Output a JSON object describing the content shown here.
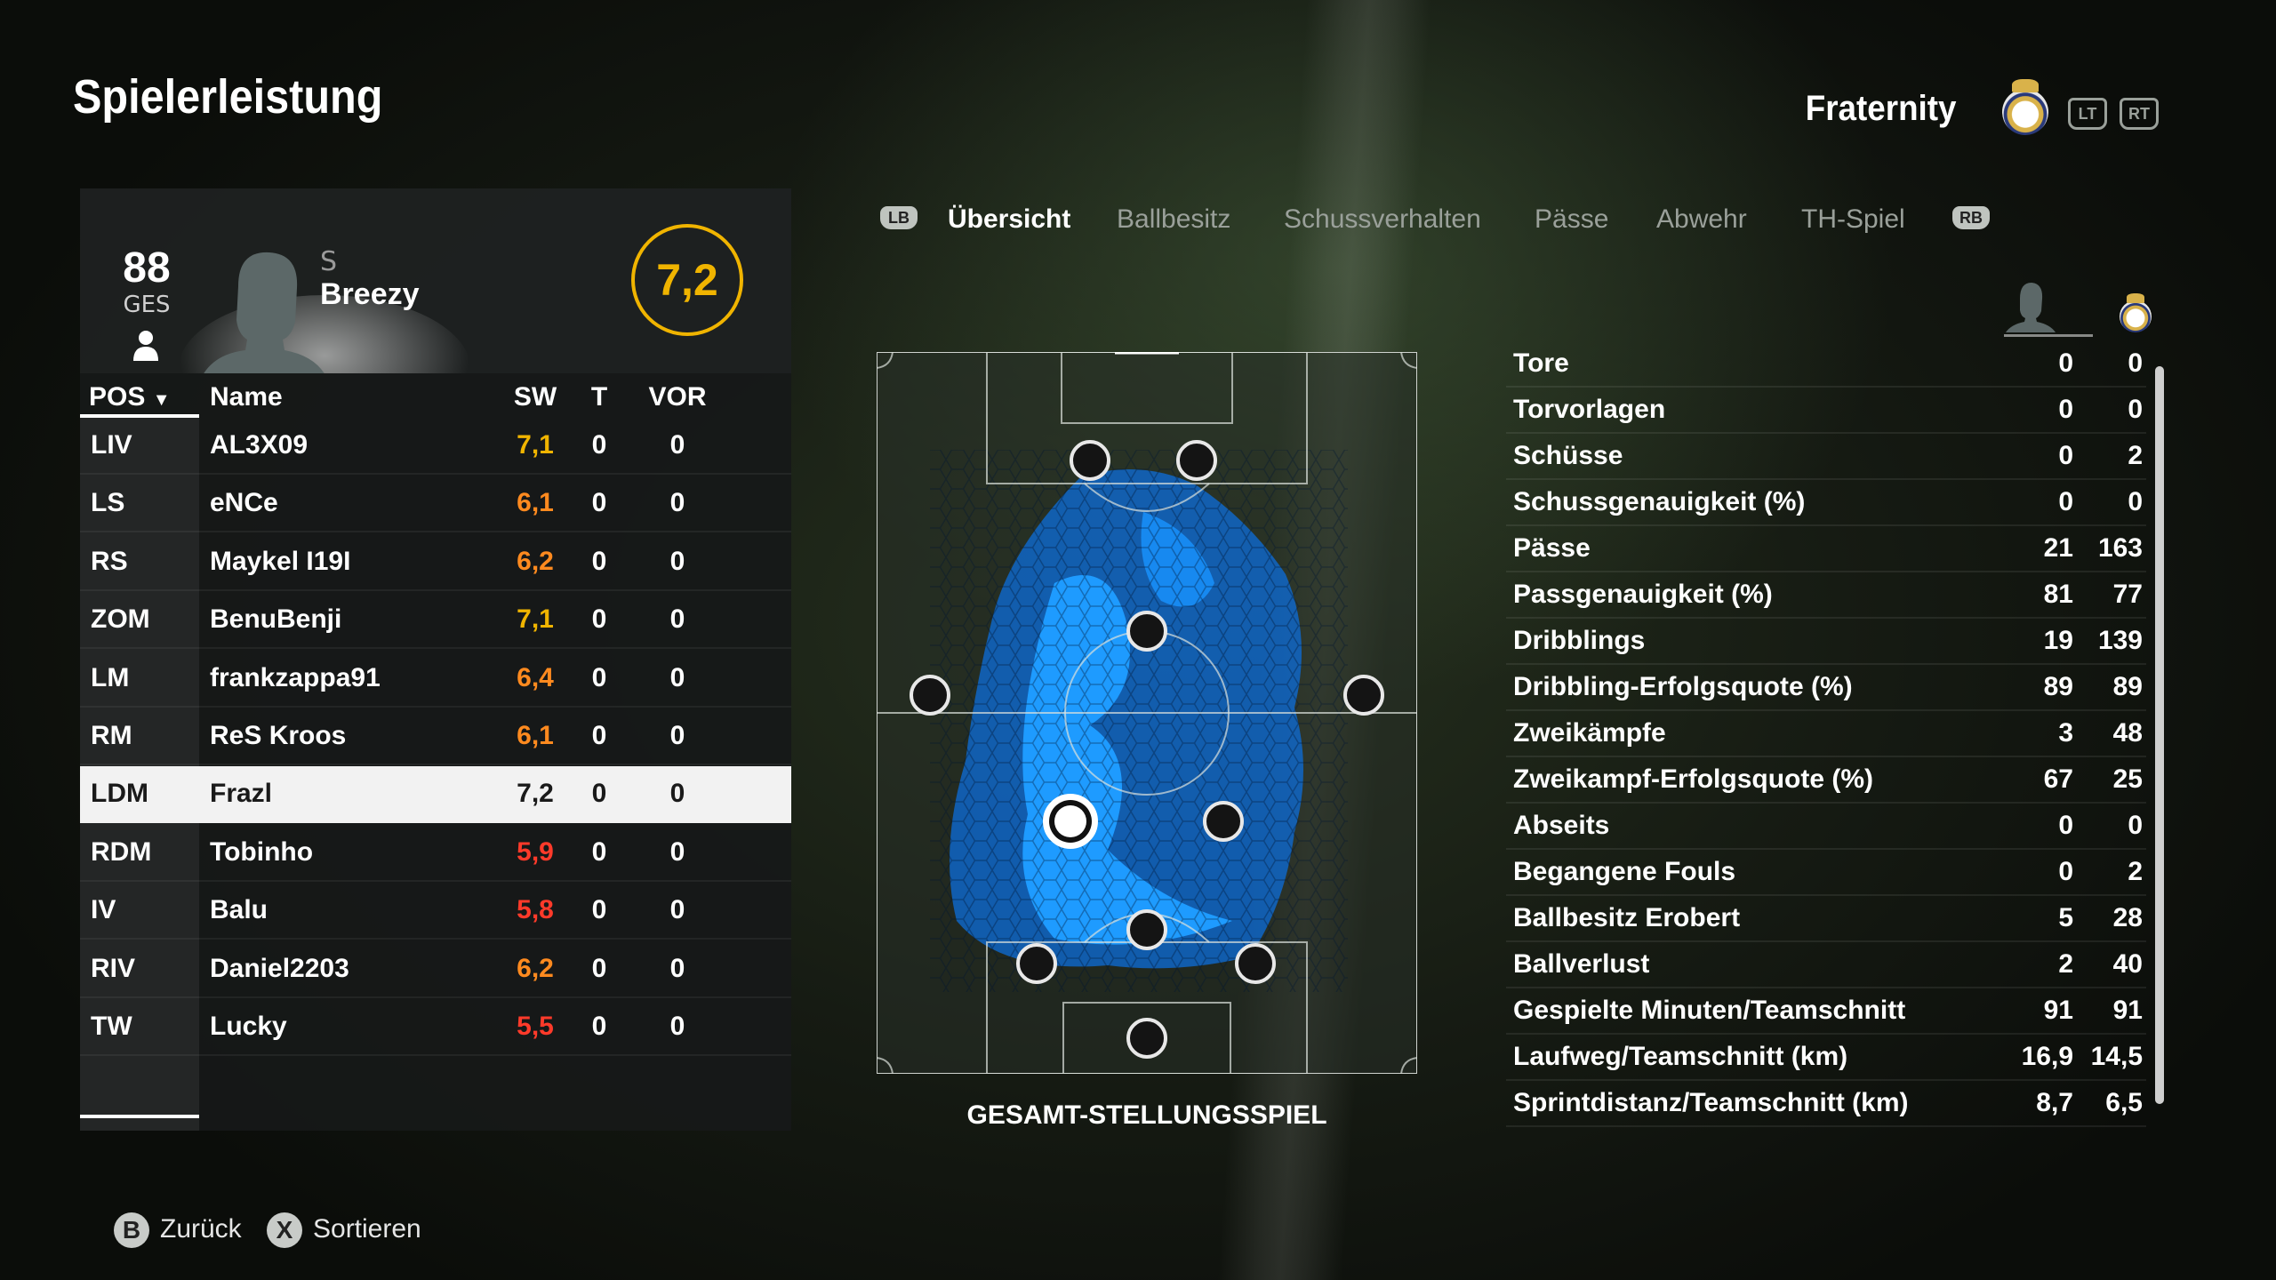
{
  "header": {
    "title": "Spielerleistung",
    "team": "Fraternity",
    "lt": "LT",
    "rt": "RT"
  },
  "player_card": {
    "overall": "88",
    "overall_label": "GES",
    "position": "S",
    "name": "Breezy",
    "rating": "7,2"
  },
  "table": {
    "headers": {
      "pos": "POS",
      "name": "Name",
      "sw": "SW",
      "t": "T",
      "vor": "VOR"
    },
    "rows": [
      {
        "pos": "LIV",
        "name": "AL3X09",
        "sw": "7,1",
        "t": "0",
        "vor": "0",
        "color": "#f0b400"
      },
      {
        "pos": "LS",
        "name": "eNCe",
        "sw": "6,1",
        "t": "0",
        "vor": "0",
        "color": "#ff8a1f"
      },
      {
        "pos": "RS",
        "name": "Maykel I19I",
        "sw": "6,2",
        "t": "0",
        "vor": "0",
        "color": "#ff8a1f"
      },
      {
        "pos": "ZOM",
        "name": "BenuBenji",
        "sw": "7,1",
        "t": "0",
        "vor": "0",
        "color": "#f0b400"
      },
      {
        "pos": "LM",
        "name": "frankzappa91",
        "sw": "6,4",
        "t": "0",
        "vor": "0",
        "color": "#ff8a1f"
      },
      {
        "pos": "RM",
        "name": "ReS Kroos",
        "sw": "6,1",
        "t": "0",
        "vor": "0",
        "color": "#ff8a1f"
      },
      {
        "pos": "LDM",
        "name": "Frazl",
        "sw": "7,2",
        "t": "0",
        "vor": "0",
        "color": "#1a1a1a",
        "selected": true
      },
      {
        "pos": "RDM",
        "name": "Tobinho",
        "sw": "5,9",
        "t": "0",
        "vor": "0",
        "color": "#ff3a2a"
      },
      {
        "pos": "IV",
        "name": "Balu",
        "sw": "5,8",
        "t": "0",
        "vor": "0",
        "color": "#ff3a2a"
      },
      {
        "pos": "RIV",
        "name": "Daniel2203",
        "sw": "6,2",
        "t": "0",
        "vor": "0",
        "color": "#ff8a1f"
      },
      {
        "pos": "TW",
        "name": "Lucky",
        "sw": "5,5",
        "t": "0",
        "vor": "0",
        "color": "#ff3a2a"
      }
    ]
  },
  "tabs": {
    "lb": "LB",
    "rb": "RB",
    "items": [
      "Übersicht",
      "Ballbesitz",
      "Schussverhalten",
      "Pässe",
      "Abwehr",
      "TH-Spiel"
    ],
    "active": 0
  },
  "pitch": {
    "caption": "GESAMT-STELLUNGSSPIEL"
  },
  "stats": [
    {
      "label": "Tore",
      "player": "0",
      "team": "0"
    },
    {
      "label": "Torvorlagen",
      "player": "0",
      "team": "0"
    },
    {
      "label": "Schüsse",
      "player": "0",
      "team": "2"
    },
    {
      "label": "Schussgenauigkeit (%)",
      "player": "0",
      "team": "0"
    },
    {
      "label": "Pässe",
      "player": "21",
      "team": "163"
    },
    {
      "label": "Passgenauigkeit (%)",
      "player": "81",
      "team": "77"
    },
    {
      "label": "Dribblings",
      "player": "19",
      "team": "139"
    },
    {
      "label": "Dribbling-Erfolgsquote (%)",
      "player": "89",
      "team": "89"
    },
    {
      "label": "Zweikämpfe",
      "player": "3",
      "team": "48"
    },
    {
      "label": "Zweikampf-Erfolgsquote (%)",
      "player": "67",
      "team": "25"
    },
    {
      "label": "Abseits",
      "player": "0",
      "team": "0"
    },
    {
      "label": "Begangene Fouls",
      "player": "0",
      "team": "2"
    },
    {
      "label": "Ballbesitz Erobert",
      "player": "5",
      "team": "28"
    },
    {
      "label": "Ballverlust",
      "player": "2",
      "team": "40"
    },
    {
      "label": "Gespielte Minuten/Teamschnitt",
      "player": "91",
      "team": "91"
    },
    {
      "label": "Laufweg/Teamschnitt (km)",
      "player": "16,9",
      "team": "14,5"
    },
    {
      "label": "Sprintdistanz/Teamschnitt (km)",
      "player": "8,7",
      "team": "6,5"
    }
  ],
  "footer": {
    "back_btn": "B",
    "back_label": "Zurück",
    "sort_btn": "X",
    "sort_label": "Sortieren"
  },
  "colors": {
    "accent": "#f0b400",
    "orange": "#ff8a1f",
    "red": "#ff3a2a",
    "heat": "#1a8cff"
  }
}
